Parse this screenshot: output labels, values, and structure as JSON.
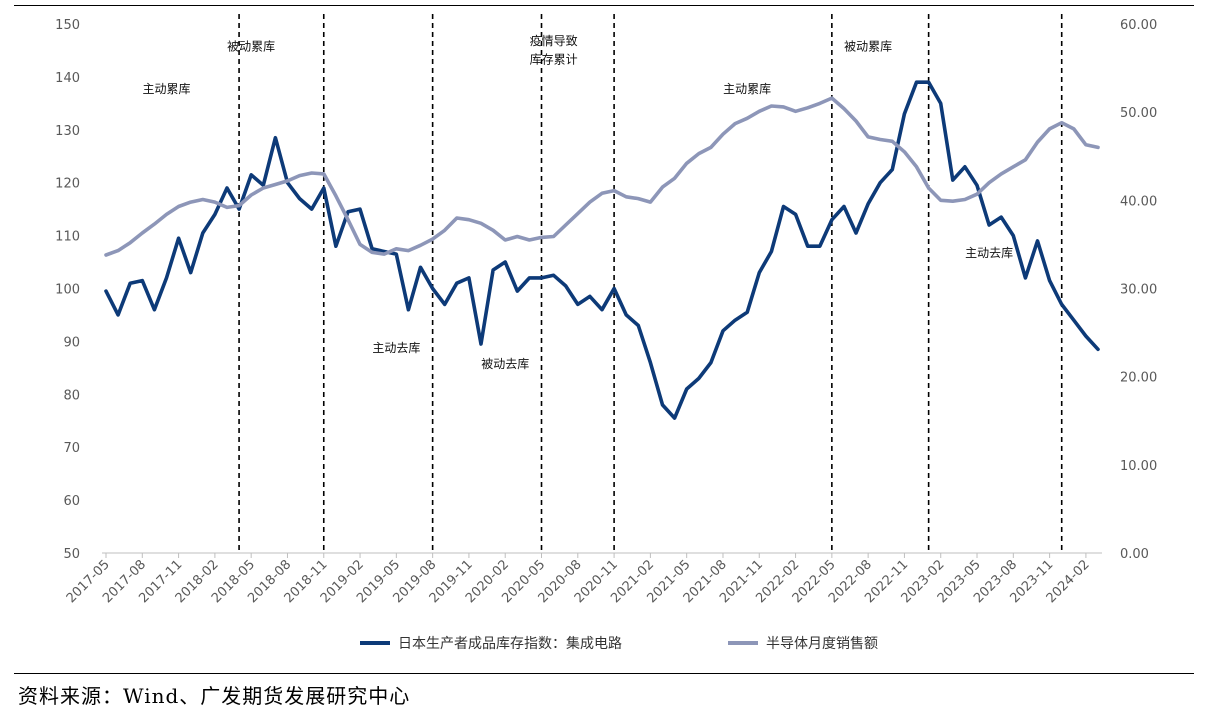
{
  "source_note": "资料来源：Wind、广发期货发展研究中心",
  "chart_data": {
    "type": "line",
    "title": "",
    "xlabel": "",
    "ylabel_left": "",
    "ylabel_right": "",
    "ylim_left": [
      50,
      150
    ],
    "ylim_right": [
      0,
      60
    ],
    "yticks_left": [
      "50",
      "60",
      "70",
      "80",
      "90",
      "100",
      "110",
      "120",
      "130",
      "140",
      "150"
    ],
    "yticks_right": [
      "0.00",
      "10.00",
      "20.00",
      "30.00",
      "40.00",
      "50.00",
      "60.00"
    ],
    "grid": false,
    "legend_position": "bottom",
    "x": [
      "2017-05",
      "2017-06",
      "2017-07",
      "2017-08",
      "2017-09",
      "2017-10",
      "2017-11",
      "2017-12",
      "2018-01",
      "2018-02",
      "2018-03",
      "2018-04",
      "2018-05",
      "2018-06",
      "2018-07",
      "2018-08",
      "2018-09",
      "2018-10",
      "2018-11",
      "2018-12",
      "2019-01",
      "2019-02",
      "2019-03",
      "2019-04",
      "2019-05",
      "2019-06",
      "2019-07",
      "2019-08",
      "2019-09",
      "2019-10",
      "2019-11",
      "2019-12",
      "2020-01",
      "2020-02",
      "2020-03",
      "2020-04",
      "2020-05",
      "2020-06",
      "2020-07",
      "2020-08",
      "2020-09",
      "2020-10",
      "2020-11",
      "2020-12",
      "2021-01",
      "2021-02",
      "2021-03",
      "2021-04",
      "2021-05",
      "2021-06",
      "2021-07",
      "2021-08",
      "2021-09",
      "2021-10",
      "2021-11",
      "2021-12",
      "2022-01",
      "2022-02",
      "2022-03",
      "2022-04",
      "2022-05",
      "2022-06",
      "2022-07",
      "2022-08",
      "2022-09",
      "2022-10",
      "2022-11",
      "2022-12",
      "2023-01",
      "2023-02",
      "2023-03",
      "2023-04",
      "2023-05",
      "2023-06",
      "2023-07",
      "2023-08",
      "2023-09",
      "2023-10",
      "2023-11",
      "2023-12",
      "2024-01",
      "2024-02",
      "2024-03"
    ],
    "xtick_labels": [
      "2017-05",
      "2017-08",
      "2017-11",
      "2018-02",
      "2018-05",
      "2018-08",
      "2018-11",
      "2019-02",
      "2019-05",
      "2019-08",
      "2019-11",
      "2020-02",
      "2020-05",
      "2020-08",
      "2020-11",
      "2021-02",
      "2021-05",
      "2021-08",
      "2021-11",
      "2022-02",
      "2022-05",
      "2022-08",
      "2022-11",
      "2023-02",
      "2023-05",
      "2023-08",
      "2023-11",
      "2024-02"
    ],
    "series": [
      {
        "name": "日本生产者成品库存指数：集成电路",
        "axis": "left",
        "color": "#0d3a78",
        "values": [
          99.5,
          95,
          101,
          101.5,
          96,
          102,
          109.5,
          103,
          110.5,
          114,
          119,
          115,
          121.5,
          119.5,
          128.5,
          120,
          117,
          115,
          119,
          108,
          114.5,
          115,
          107.5,
          107,
          106.5,
          96,
          104,
          100,
          97,
          101,
          102,
          89.5,
          103.5,
          105,
          99.5,
          102,
          102,
          102.5,
          100.5,
          97,
          98.5,
          96,
          100,
          95,
          93,
          86,
          78,
          75.5,
          81,
          83,
          86,
          92,
          94,
          95.5,
          103,
          107,
          115.5,
          114,
          108,
          108,
          113,
          115.5,
          110.5,
          116,
          120,
          122.5,
          133,
          139,
          139,
          135,
          120.5,
          123,
          119.5,
          112,
          113.5,
          110,
          102,
          109,
          101.5,
          97,
          94,
          91,
          88.5
        ]
      },
      {
        "name": "半导体月度销售额",
        "axis": "right",
        "color": "#8d96b8",
        "values": [
          33.8,
          34.3,
          35.2,
          36.3,
          37.3,
          38.4,
          39.3,
          39.8,
          40.1,
          39.8,
          39.2,
          39.4,
          40.6,
          41.4,
          41.8,
          42.2,
          42.8,
          43.1,
          43.0,
          40.5,
          37.8,
          35.0,
          34.1,
          33.9,
          34.5,
          34.3,
          34.9,
          35.6,
          36.6,
          38.0,
          37.8,
          37.4,
          36.6,
          35.5,
          35.9,
          35.5,
          35.8,
          35.9,
          37.2,
          38.5,
          39.8,
          40.8,
          41.1,
          40.4,
          40.2,
          39.8,
          41.5,
          42.5,
          44.2,
          45.3,
          46.0,
          47.5,
          48.7,
          49.3,
          50.1,
          50.7,
          50.6,
          50.1,
          50.5,
          51.0,
          51.6,
          50.4,
          49.0,
          47.2,
          46.9,
          46.7,
          45.5,
          43.8,
          41.4,
          40.0,
          39.9,
          40.1,
          40.7,
          42.0,
          43.0,
          43.8,
          44.6,
          46.6,
          48.1,
          48.8,
          48.1,
          46.3,
          46.0
        ]
      }
    ],
    "phase_lines": [
      "2018-04",
      "2018-11",
      "2019-08",
      "2020-05",
      "2020-11",
      "2022-05",
      "2023-01",
      "2023-12"
    ],
    "annotations": [
      {
        "text": "主动累库",
        "x": "2017-10",
        "y": 137
      },
      {
        "text": "被动累库",
        "x": "2018-05",
        "y": 145
      },
      {
        "text": "主动去库",
        "x": "2019-05",
        "y": 88
      },
      {
        "text": "被动去库",
        "x": "2020-02",
        "y": 85
      },
      {
        "text": "疫情导致",
        "x": "2020-06",
        "y": 146
      },
      {
        "text": "库存累计",
        "x": "2020-06",
        "y": 142.5
      },
      {
        "text": "主动累库",
        "x": "2021-10",
        "y": 137
      },
      {
        "text": "被动累库",
        "x": "2022-08",
        "y": 145
      },
      {
        "text": "主动去库",
        "x": "2023-06",
        "y": 106
      }
    ]
  }
}
